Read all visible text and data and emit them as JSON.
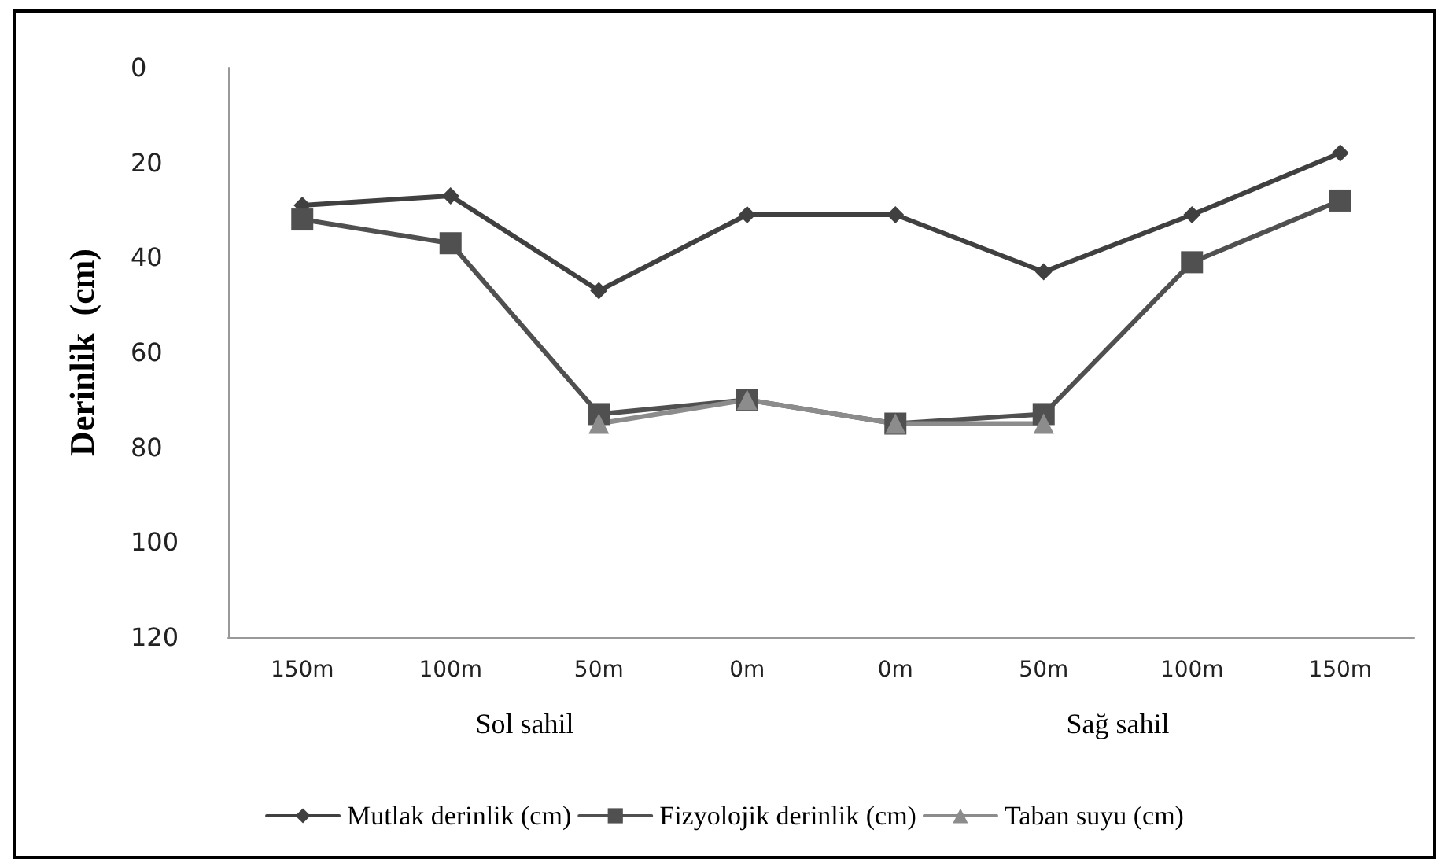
{
  "chart_data": {
    "type": "line",
    "ylabel": "Derinlik  (cm)",
    "categories": [
      "150m",
      "100m",
      "50m",
      "0m",
      "0m",
      "50m",
      "100m",
      "150m"
    ],
    "annotations": [
      "Sol sahil",
      "Sağ sahil"
    ],
    "series": [
      {
        "name": "Mutlak derinlik (cm)",
        "color": "#404040",
        "marker": "diamond",
        "values": [
          29,
          27,
          47,
          31,
          31,
          43,
          31,
          18
        ]
      },
      {
        "name": "Fizyolojik derinlik (cm)",
        "color": "#505050",
        "marker": "square",
        "values": [
          32,
          37,
          73,
          70,
          75,
          73,
          41,
          28
        ]
      },
      {
        "name": "Taban suyu (cm)",
        "color": "#8c8c8c",
        "marker": "triangle",
        "values": [
          null,
          null,
          75,
          70,
          75,
          75,
          null,
          null
        ]
      }
    ],
    "ylim": [
      120,
      0
    ],
    "yticks": [
      0,
      20,
      40,
      60,
      80,
      100,
      120
    ],
    "grid": false,
    "legend": "bottom",
    "line_style": "solid"
  }
}
